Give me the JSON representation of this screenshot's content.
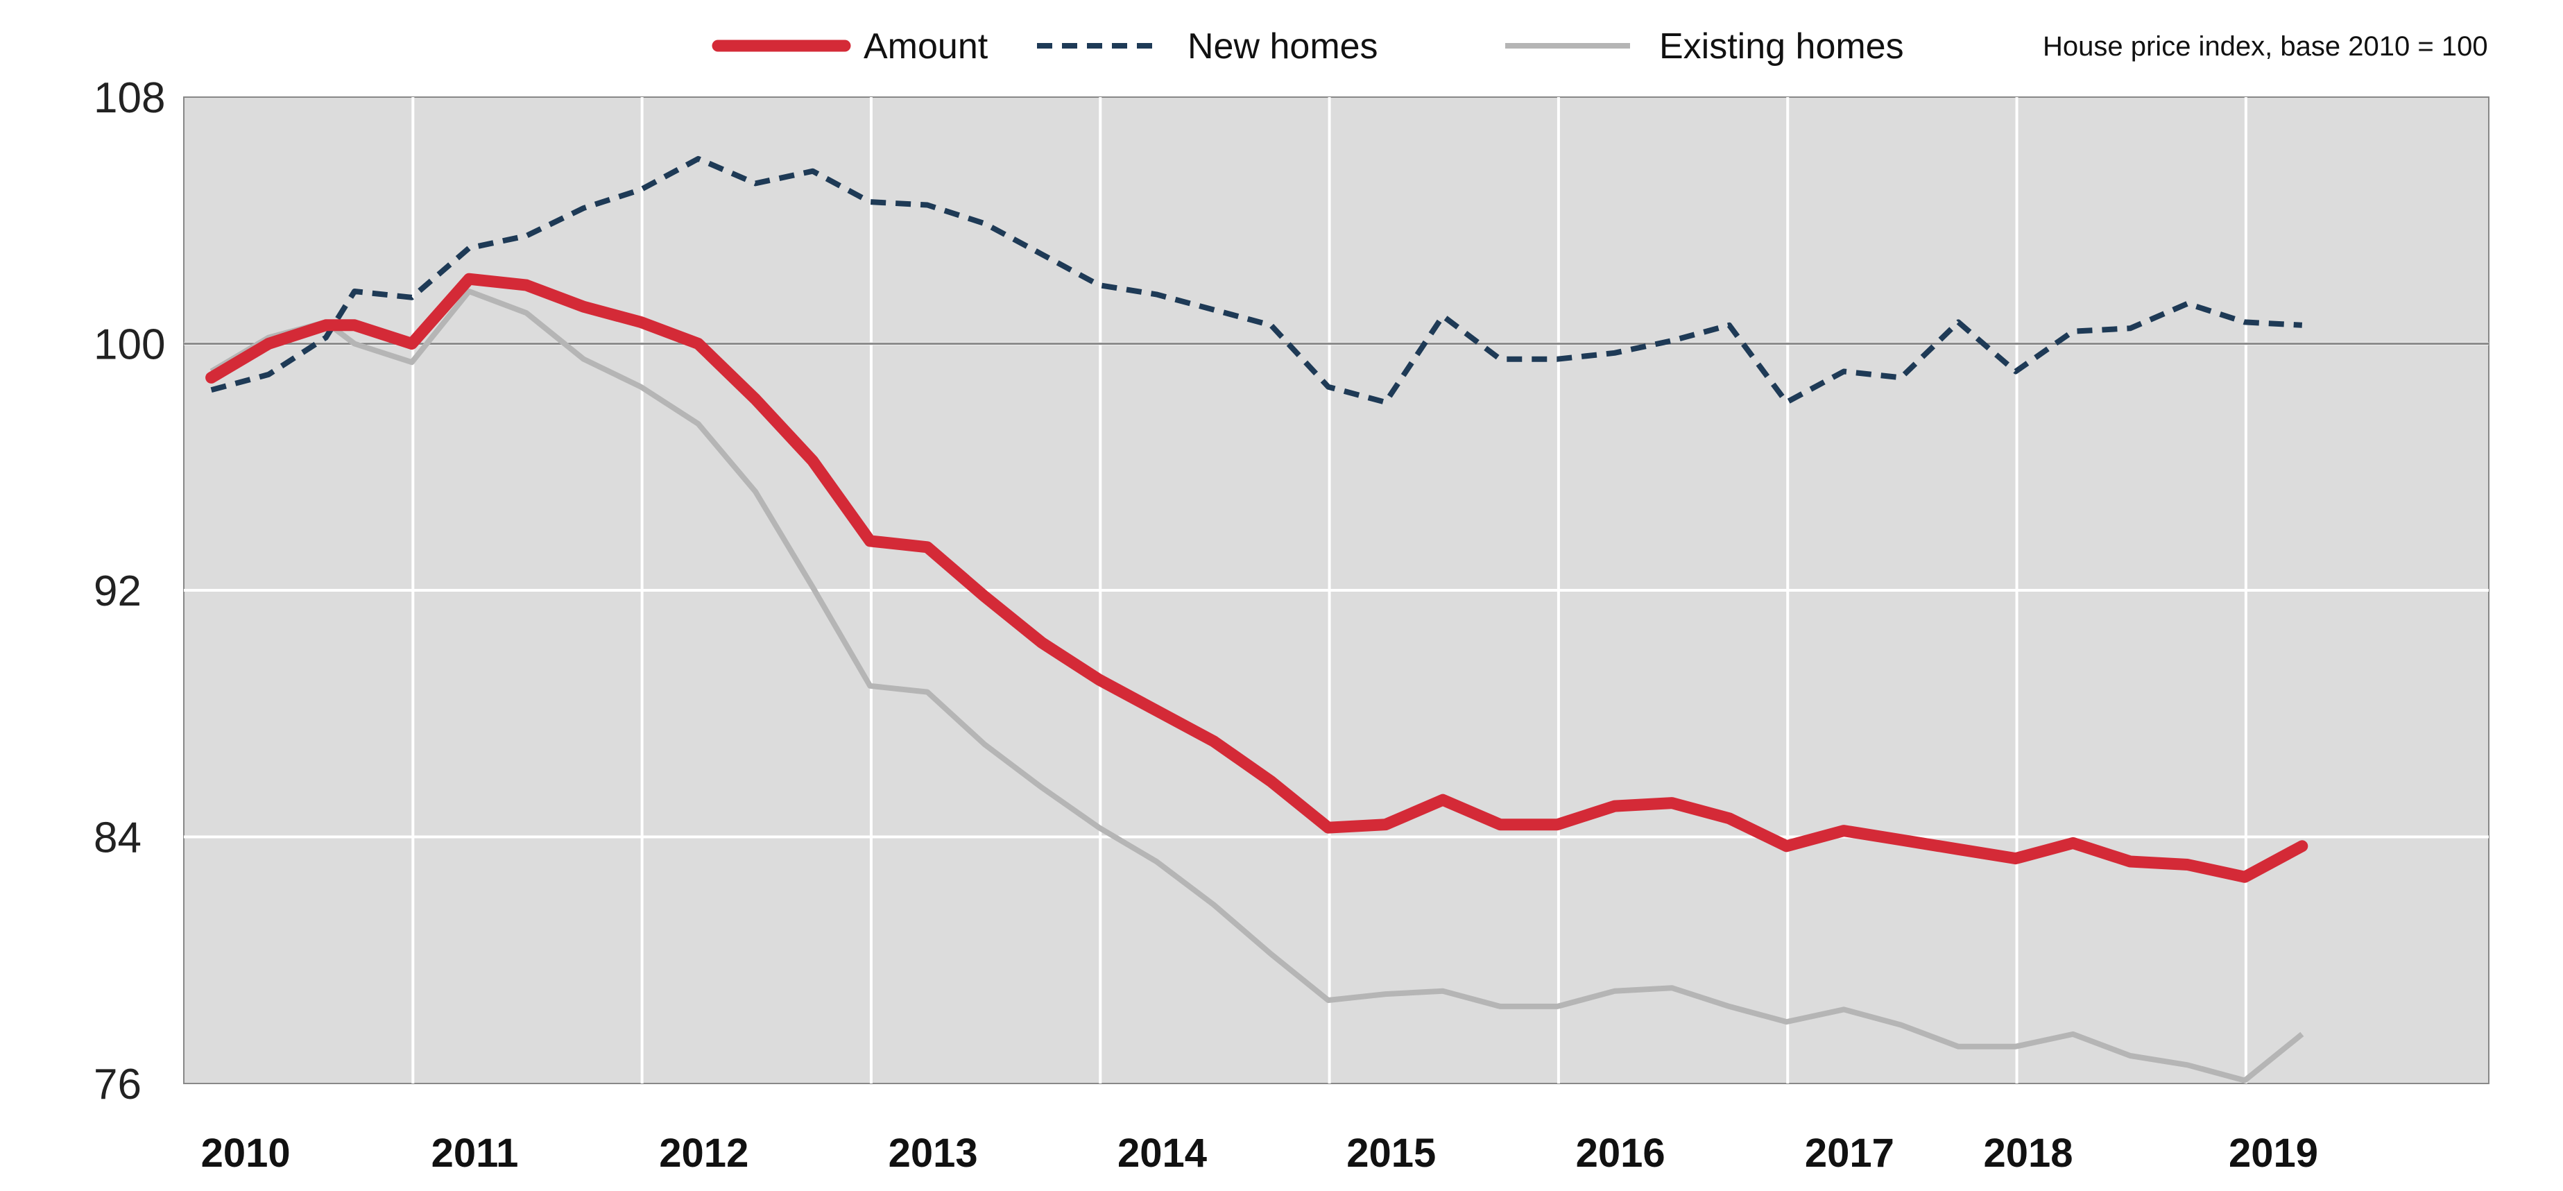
{
  "chart_data": {
    "type": "line",
    "title": "",
    "note": "House price index, base 2010 = 100",
    "xlabel": "",
    "ylabel": "",
    "ylim": [
      76,
      108
    ],
    "y_ticks": [
      76,
      84,
      92,
      100,
      108
    ],
    "reference_line": 100,
    "x_range": [
      2009.88,
      2019.94
    ],
    "x_tick_labels": [
      {
        "label": "2010",
        "pos": 2010.15
      },
      {
        "label": "2011",
        "pos": 2011.15
      },
      {
        "label": "2012",
        "pos": 2012.15
      },
      {
        "label": "2013",
        "pos": 2013.15
      },
      {
        "label": "2014",
        "pos": 2014.15
      },
      {
        "label": "2015",
        "pos": 2015.15
      },
      {
        "label": "2016",
        "pos": 2016.15
      },
      {
        "label": "2017",
        "pos": 2017.15
      },
      {
        "label": "2018",
        "pos": 2017.93
      },
      {
        "label": "2019",
        "pos": 2019.0
      }
    ],
    "x_gridlines": [
      2010.88,
      2011.88,
      2012.88,
      2013.88,
      2014.88,
      2015.88,
      2016.88,
      2017.88,
      2018.88
    ],
    "x": [
      2010.0,
      2010.25,
      2010.5,
      2010.625,
      2010.875,
      2011.125,
      2011.375,
      2011.625,
      2011.875,
      2012.125,
      2012.375,
      2012.625,
      2012.875,
      2013.125,
      2013.375,
      2013.625,
      2013.875,
      2014.125,
      2014.375,
      2014.625,
      2014.875,
      2015.125,
      2015.375,
      2015.625,
      2015.875,
      2016.125,
      2016.375,
      2016.625,
      2016.875,
      2017.125,
      2017.375,
      2017.625,
      2017.875,
      2018.125,
      2018.375,
      2018.625,
      2018.875,
      2019.125
    ],
    "series": [
      {
        "name": "Amount",
        "color": "#d42a37",
        "style": "solid-thick",
        "values": [
          98.9,
          100.0,
          100.6,
          100.6,
          100.0,
          102.1,
          101.9,
          101.2,
          100.7,
          100.0,
          98.2,
          96.2,
          93.6,
          93.4,
          91.8,
          90.3,
          89.1,
          88.1,
          87.1,
          85.8,
          84.3,
          84.4,
          85.2,
          84.4,
          84.4,
          85.0,
          85.1,
          84.6,
          83.7,
          84.2,
          83.9,
          83.6,
          83.3,
          83.8,
          83.2,
          83.1,
          82.7,
          83.7
        ]
      },
      {
        "name": "New homes",
        "color": "#1e3a56",
        "style": "dashed",
        "values": [
          98.5,
          99.0,
          100.2,
          101.7,
          101.5,
          103.1,
          103.5,
          104.4,
          105.0,
          106.0,
          105.2,
          105.6,
          104.6,
          104.5,
          103.9,
          102.9,
          101.9,
          101.6,
          101.1,
          100.6,
          98.6,
          98.1,
          100.9,
          99.5,
          99.5,
          99.7,
          100.1,
          100.6,
          98.1,
          99.1,
          98.9,
          100.7,
          99.1,
          100.4,
          100.5,
          101.3,
          100.7,
          100.6
        ]
      },
      {
        "name": "Existing homes",
        "color": "#b5b5b5",
        "style": "solid-thin",
        "values": [
          99.1,
          100.2,
          100.7,
          100.0,
          99.4,
          101.7,
          101.0,
          99.5,
          98.6,
          97.4,
          95.2,
          92.1,
          88.9,
          88.7,
          87.0,
          85.6,
          84.3,
          83.2,
          81.8,
          80.2,
          78.7,
          78.9,
          79.0,
          78.5,
          78.5,
          79.0,
          79.1,
          78.5,
          78.0,
          78.4,
          77.9,
          77.2,
          77.2,
          77.6,
          76.9,
          76.6,
          76.1,
          77.6
        ]
      }
    ],
    "legend": [
      {
        "label": "Amount",
        "color": "#d42a37",
        "style": "solid-thick"
      },
      {
        "label": "New homes",
        "color": "#1e3a56",
        "style": "dashed"
      },
      {
        "label": "Existing homes",
        "color": "#b5b5b5",
        "style": "solid-thin"
      }
    ],
    "colors": {
      "plot_bg": "#dcdcdc",
      "gridline": "#ffffff",
      "reference_line": "#8c8c8c",
      "axis": "#888888"
    }
  }
}
